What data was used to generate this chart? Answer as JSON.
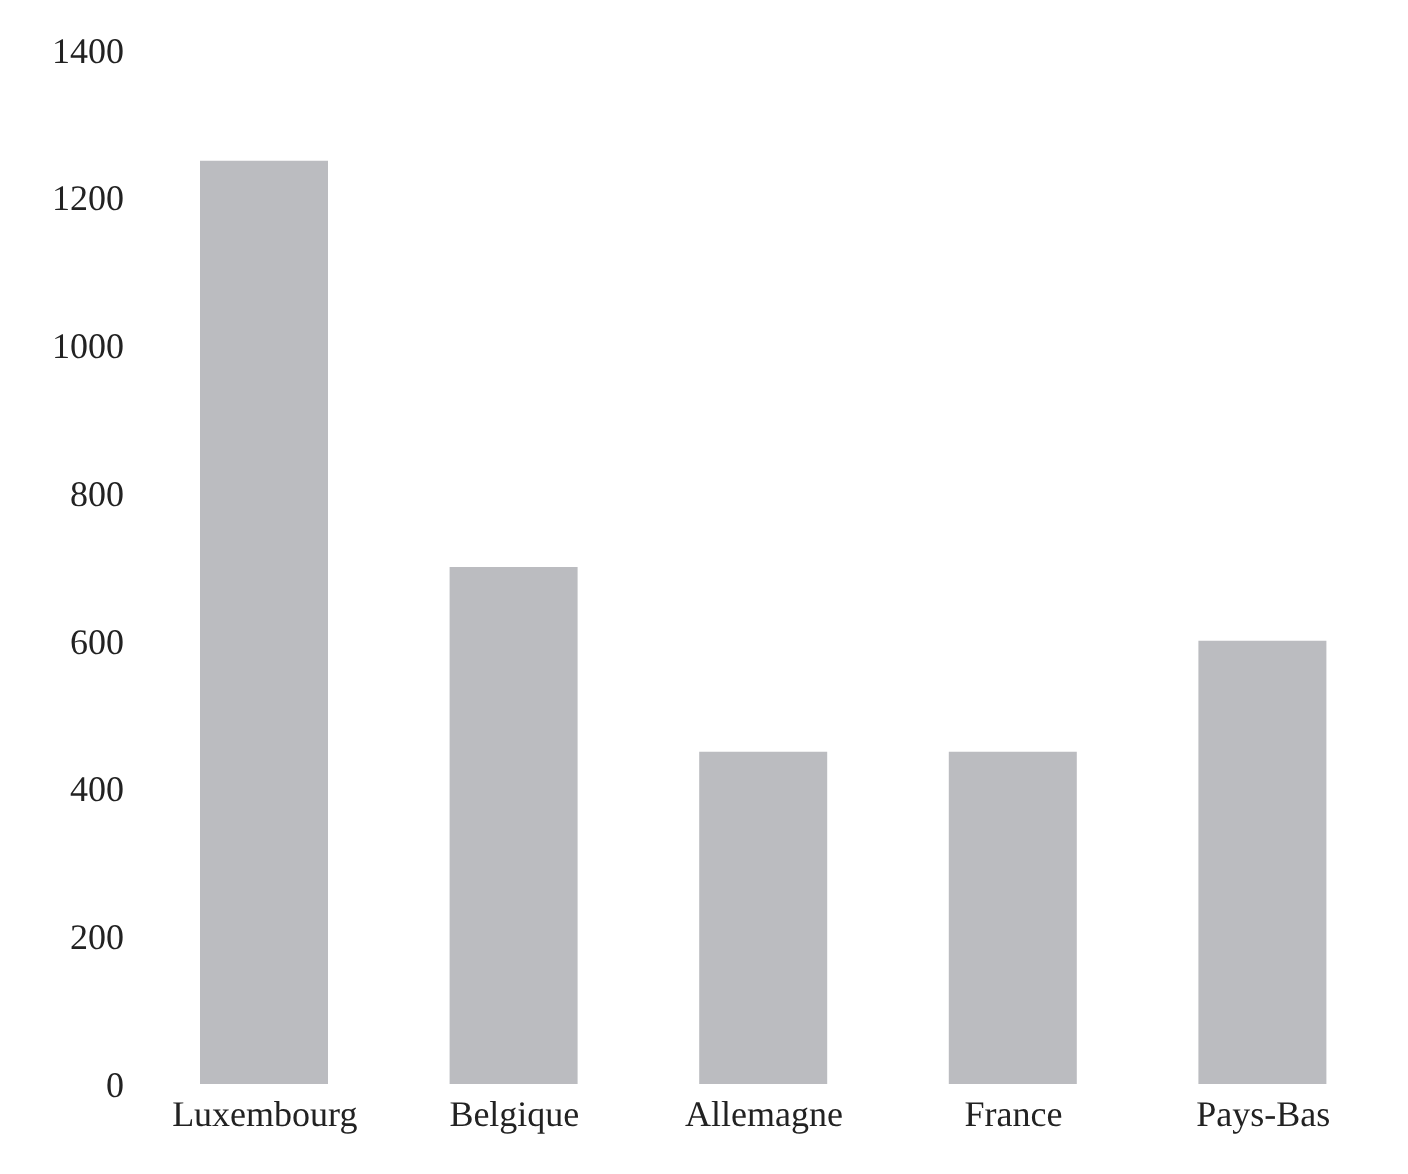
{
  "chart_data": {
    "type": "bar",
    "categories": [
      "Luxembourg",
      "Belgique",
      "Allemagne",
      "France",
      "Pays-Bas"
    ],
    "values": [
      1250,
      700,
      450,
      450,
      600
    ],
    "color": "#bbbcc0",
    "ylim": [
      0,
      1400
    ],
    "yticks": [
      0,
      200,
      400,
      600,
      800,
      1000,
      1200,
      1400
    ],
    "grid": false,
    "legend": false
  }
}
